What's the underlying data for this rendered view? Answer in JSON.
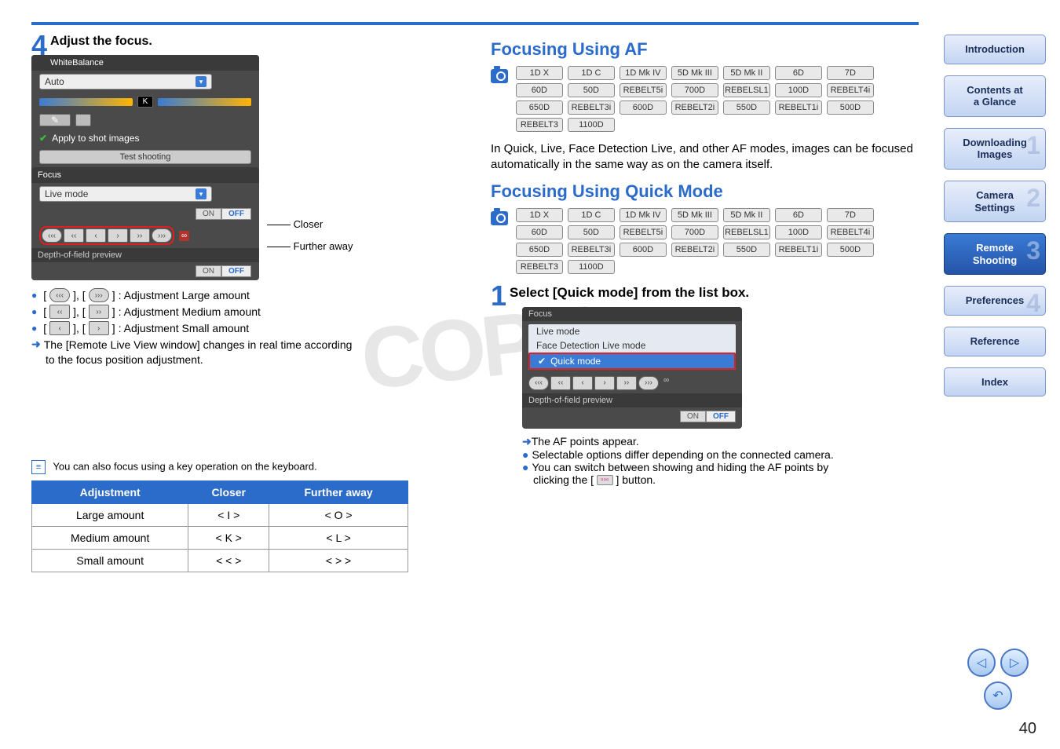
{
  "page_number": "40",
  "left": {
    "step_num": "4",
    "step_title": "Adjust the focus.",
    "panel": {
      "wb_header": "WhiteBalance",
      "wb_value": "Auto",
      "k_label": "K",
      "apply_label": "Apply to shot images",
      "test_btn": "Test shooting",
      "focus_header": "Focus",
      "focus_mode": "Live mode",
      "on": "ON",
      "off": "OFF",
      "dof": "Depth-of-field preview"
    },
    "callout_closer": "Closer",
    "callout_further": "Further away",
    "legend_large": ": Adjustment   Large amount",
    "legend_medium": ": Adjustment   Medium amount",
    "legend_small": ": Adjustment   Small amount",
    "note_line1": "The [Remote Live View window] changes in real time according",
    "note_line2": "to the focus position adjustment.",
    "kb_note": "You can also focus using a key operation on the keyboard.",
    "table": {
      "h1": "Adjustment",
      "h2": "Closer",
      "h3": "Further away",
      "r1c1": "Large amount",
      "r1c2": "< I >",
      "r1c3": "< O >",
      "r2c1": "Medium amount",
      "r2c2": "< K >",
      "r2c3": "< L >",
      "r3c1": "Small amount",
      "r3c2": "< < >",
      "r3c3": "< > >"
    }
  },
  "right": {
    "h_af": "Focusing Using AF",
    "h_quick": "Focusing Using Quick Mode",
    "models_row1": [
      "1D X",
      "1D C",
      "1D Mk IV",
      "5D Mk III",
      "5D Mk II",
      "6D",
      "7D"
    ],
    "models_row2": [
      "60D",
      "50D",
      "REBELT5i",
      "700D",
      "REBELSL1",
      "100D",
      "REBELT4i"
    ],
    "models_row3": [
      "650D",
      "REBELT3i",
      "600D",
      "REBELT2i",
      "550D",
      "REBELT1i",
      "500D"
    ],
    "models_row4": [
      "REBELT3",
      "1100D"
    ],
    "af_text": "In Quick, Live, Face Detection Live, and other AF modes, images can be focused automatically in the same way as on the camera itself.",
    "step1_num": "1",
    "step1_title": "Select [Quick mode] from the list box.",
    "listbox": {
      "hdr": "Focus",
      "item1": "Live mode",
      "item2": "Face Detection Live mode",
      "item3": "Quick mode",
      "dof": "Depth-of-field preview",
      "on": "ON",
      "off": "OFF"
    },
    "bullet1": "The AF points appear.",
    "bullet2": "Selectable options differ depending on the connected camera.",
    "bullet3a": "You can switch between showing and hiding the AF points by",
    "bullet3b": "clicking the [",
    "bullet3c": "] button."
  },
  "sidebar": {
    "b1": "Introduction",
    "b2a": "Contents at",
    "b2b": "a Glance",
    "b3a": "Downloading",
    "b3b": "Images",
    "b4a": "Camera",
    "b4b": "Settings",
    "b5a": "Remote",
    "b5b": "Shooting",
    "b6": "Preferences",
    "b7": "Reference",
    "b8": "Index"
  }
}
